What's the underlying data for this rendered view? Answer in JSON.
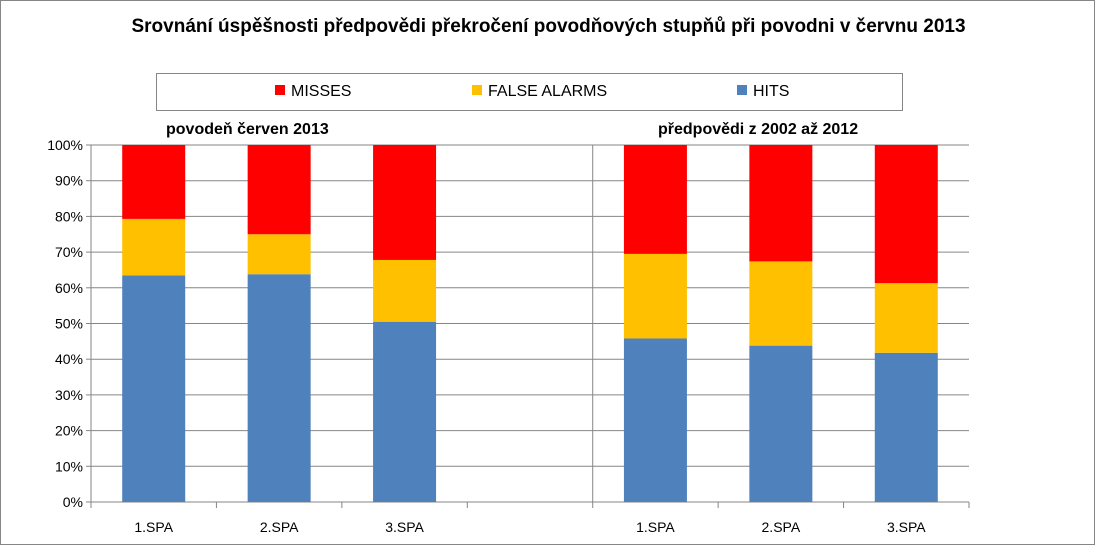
{
  "chart_data": {
    "type": "bar",
    "stacked": true,
    "normalized_percent": true,
    "title": "Srovnání úspěšnosti předpovědi překročení povodňových stupňů při povodni v červnu 2013",
    "groups": [
      {
        "label": "povodeň červen 2013",
        "categories": [
          "1.SPA",
          "2.SPA",
          "3.SPA"
        ]
      },
      {
        "label": "předpovědi z 2002 až 2012",
        "categories": [
          "1.SPA",
          "2.SPA",
          "3.SPA"
        ]
      }
    ],
    "categories": [
      "1.SPA",
      "2.SPA",
      "3.SPA",
      "",
      "1.SPA",
      "2.SPA",
      "3.SPA"
    ],
    "series": [
      {
        "name": "HITS",
        "color": "#4F81BD",
        "values": [
          63.5,
          63.8,
          50.5,
          null,
          45.8,
          43.8,
          41.8
        ]
      },
      {
        "name": "FALSE ALARMS",
        "color": "#FFC000",
        "values": [
          15.8,
          11.2,
          17.3,
          null,
          23.7,
          23.6,
          19.5
        ]
      },
      {
        "name": "MISSES",
        "color": "#FF0000",
        "values": [
          20.7,
          25.0,
          32.2,
          null,
          30.5,
          32.6,
          38.7
        ]
      }
    ],
    "legend_order": [
      "MISSES",
      "FALSE ALARMS",
      "HITS"
    ],
    "legend_position": "top",
    "ylim": [
      0,
      100
    ],
    "yticks": [
      "0%",
      "10%",
      "20%",
      "30%",
      "40%",
      "50%",
      "60%",
      "70%",
      "80%",
      "90%",
      "100%"
    ],
    "grid": true,
    "xlabel": "",
    "ylabel": ""
  }
}
